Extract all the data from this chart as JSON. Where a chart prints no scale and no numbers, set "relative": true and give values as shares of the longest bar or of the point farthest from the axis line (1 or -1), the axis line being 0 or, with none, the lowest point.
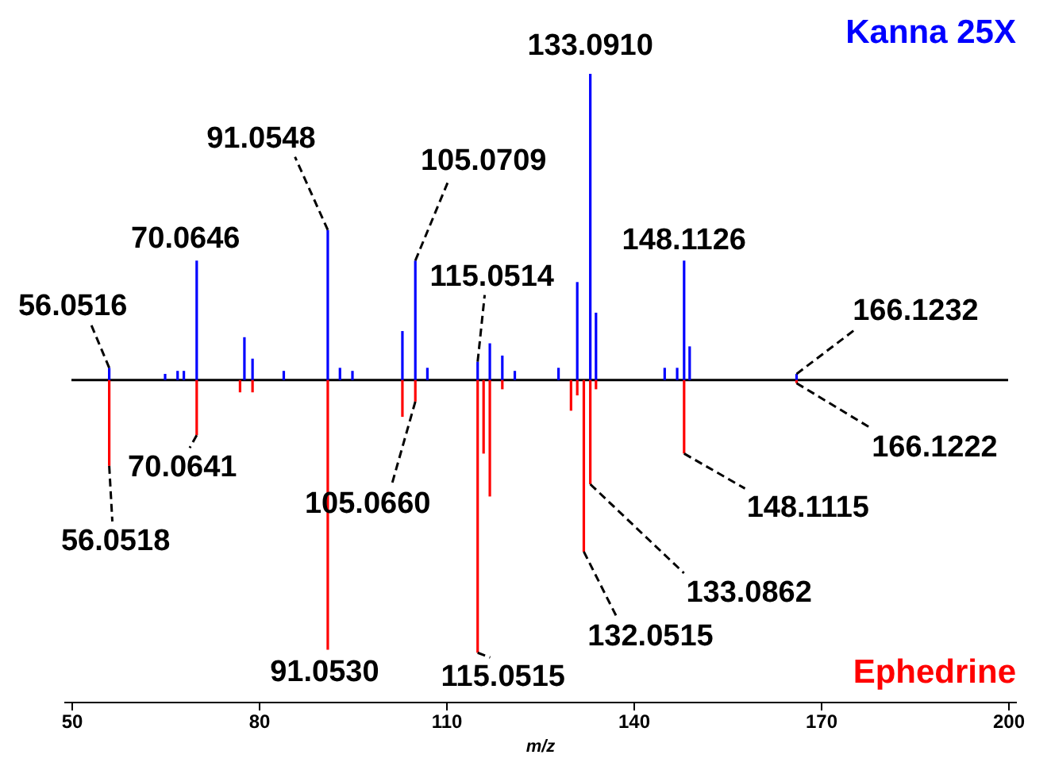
{
  "chart_data": {
    "type": "bar",
    "relative": true,
    "xlabel": "m/z",
    "xlim": [
      50,
      200
    ],
    "xticks": [
      50,
      80,
      110,
      140,
      170,
      200
    ],
    "grid": false,
    "series": [
      {
        "name": "Kanna 25X",
        "color": "#0000ff",
        "x": [
          56.05,
          65,
          67,
          68,
          70.06,
          77.7,
          79,
          84,
          91.05,
          93,
          95,
          103,
          105.07,
          107,
          115.05,
          117,
          119,
          121,
          128,
          131,
          133.09,
          134,
          145,
          147,
          148.11,
          149,
          166.12
        ],
        "values": [
          0.04,
          0.02,
          0.03,
          0.03,
          0.39,
          0.14,
          0.07,
          0.03,
          0.49,
          0.04,
          0.03,
          0.16,
          0.39,
          0.04,
          0.06,
          0.12,
          0.08,
          0.03,
          0.04,
          0.32,
          1.0,
          0.22,
          0.04,
          0.04,
          0.39,
          0.11,
          0.02
        ]
      },
      {
        "name": "Ephedrine",
        "color": "#ff0000",
        "x": [
          56.05,
          70.06,
          77,
          79,
          91.05,
          103,
          105.07,
          115.05,
          116,
          117,
          119,
          130,
          131,
          132.05,
          133.09,
          134,
          148.11,
          166.12
        ],
        "values": [
          -0.28,
          -0.18,
          -0.04,
          -0.04,
          -0.88,
          -0.12,
          -0.07,
          -0.89,
          -0.24,
          -0.38,
          -0.03,
          -0.1,
          -0.05,
          -0.56,
          -0.34,
          -0.03,
          -0.24,
          -0.01
        ]
      }
    ],
    "annotations": [
      {
        "text": "56.0516",
        "x": 56.05,
        "y": 0.04
      },
      {
        "text": "70.0646",
        "x": 70.06,
        "y": 0.39
      },
      {
        "text": "91.0548",
        "x": 91.05,
        "y": 0.49
      },
      {
        "text": "105.0709",
        "x": 105.07,
        "y": 0.39
      },
      {
        "text": "115.0514",
        "x": 115.05,
        "y": 0.06
      },
      {
        "text": "133.0910",
        "x": 133.09,
        "y": 1.0
      },
      {
        "text": "148.1126",
        "x": 148.11,
        "y": 0.39
      },
      {
        "text": "166.1232",
        "x": 166.12,
        "y": 0.02
      },
      {
        "text": "56.0518",
        "x": 56.05,
        "y": -0.28
      },
      {
        "text": "70.0641",
        "x": 70.06,
        "y": -0.18
      },
      {
        "text": "91.0530",
        "x": 91.05,
        "y": -0.88
      },
      {
        "text": "105.0660",
        "x": 105.07,
        "y": -0.07
      },
      {
        "text": "115.0515",
        "x": 115.05,
        "y": -0.89
      },
      {
        "text": "132.0515",
        "x": 132.05,
        "y": -0.56
      },
      {
        "text": "133.0862",
        "x": 133.09,
        "y": -0.34
      },
      {
        "text": "148.1115",
        "x": 148.11,
        "y": -0.24
      },
      {
        "text": "166.1222",
        "x": 166.12,
        "y": -0.01
      }
    ]
  }
}
